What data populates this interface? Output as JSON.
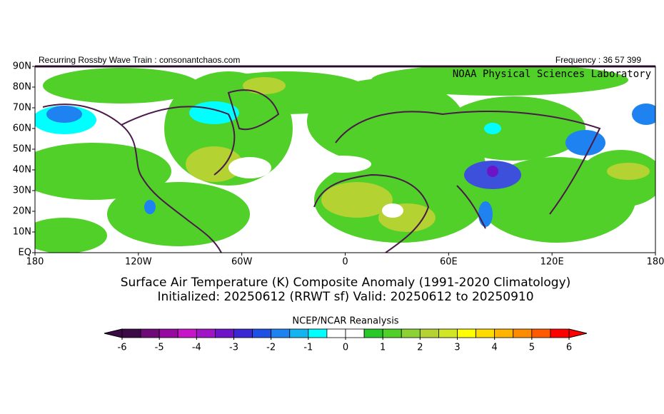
{
  "header": {
    "left": "Recurring Rossby Wave Train : consonantchaos.com",
    "right": "Frequency : 36 57 399"
  },
  "map": {
    "credit": "NOAA Physical Sciences Laboratory",
    "lat_labels": [
      "90N",
      "80N",
      "70N",
      "60N",
      "50N",
      "40N",
      "30N",
      "20N",
      "10N",
      "EQ"
    ],
    "lon_labels": [
      "180",
      "120W",
      "60W",
      "0",
      "60E",
      "120E",
      "180"
    ]
  },
  "title": [
    "Surface Air Temperature (K) Composite Anomaly (1991-2020 Climatology)",
    "Initialized: 20250612 (RRWT sf) Valid: 20250612 to 20250910"
  ],
  "colorbar": {
    "title": "NCEP/NCAR Reanalysis",
    "ticks": [
      -6,
      -5,
      -4,
      -3,
      -2,
      -1,
      0,
      1,
      2,
      3,
      4,
      5,
      6
    ],
    "colors": [
      "#3c0a46",
      "#6e0a78",
      "#960aa0",
      "#c814c8",
      "#a014c8",
      "#6e14c8",
      "#3c28d2",
      "#1e50e6",
      "#1e82f0",
      "#14b4f0",
      "#00ffff",
      "#ffffff",
      "#ffffff",
      "#28c828",
      "#50d028",
      "#8cd232",
      "#b4d232",
      "#d2e628",
      "#ffff00",
      "#ffdc00",
      "#ffb400",
      "#ff8c00",
      "#ff5a00",
      "#ff0000"
    ]
  }
}
